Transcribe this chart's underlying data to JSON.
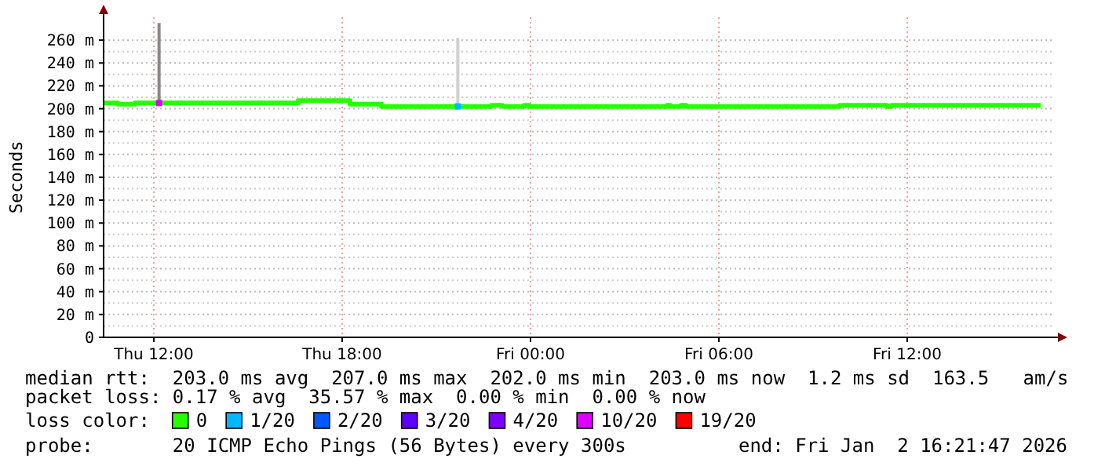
{
  "chart_data": {
    "type": "step",
    "ylabel": "Seconds",
    "legend_title": "loss color:",
    "legend": "bottom",
    "grid": true,
    "xlim": [
      "2026-01-01T10:24",
      "2026-01-02T16:36"
    ],
    "ylim": [
      0,
      280
    ],
    "xticks": [
      {
        "value": "2026-01-01T12:00",
        "label": "Thu 12:00"
      },
      {
        "value": "2026-01-01T18:00",
        "label": "Thu 18:00"
      },
      {
        "value": "2026-01-02T00:00",
        "label": "Fri 00:00"
      },
      {
        "value": "2026-01-02T06:00",
        "label": "Fri 06:00"
      },
      {
        "value": "2026-01-02T12:00",
        "label": "Fri 12:00"
      }
    ],
    "yticks": [
      0,
      {
        "value": 20,
        "label": "20 m"
      },
      {
        "value": 40,
        "label": "40 m"
      },
      {
        "value": 60,
        "label": "60 m"
      },
      {
        "value": 80,
        "label": "80 m"
      },
      {
        "value": 100,
        "label": "100 m"
      },
      {
        "value": 120,
        "label": "120 m"
      },
      {
        "value": 140,
        "label": "140 m"
      },
      {
        "value": 160,
        "label": "160 m"
      },
      {
        "value": 180,
        "label": "180 m"
      },
      {
        "value": 200,
        "label": "200 m"
      },
      {
        "value": 220,
        "label": "220 m"
      },
      {
        "value": 240,
        "label": "240 m"
      },
      {
        "value": 260,
        "label": "260 m"
      }
    ],
    "series": [
      {
        "type": "line",
        "color": "#888888",
        "x": [
          "2026-01-01T12:10",
          "2026-01-01T12:10"
        ],
        "values": [
          205,
          275
        ]
      },
      {
        "type": "line",
        "color": "#d0d0d0",
        "x": [
          "2026-01-01T21:41",
          "2026-01-01T21:41"
        ],
        "values": [
          202,
          262
        ]
      },
      {
        "name": "0",
        "color": "#26ff00",
        "x": [
          "2026-01-01T10:24",
          "2026-01-01T10:51",
          "2026-01-01T11:24",
          "2026-01-01T16:36",
          "2026-01-01T18:15",
          "2026-01-01T19:15",
          "2026-01-01T22:45",
          "2026-01-01T23:06",
          "2026-01-01T23:48",
          "2026-01-01T23:57",
          "2026-01-02T04:21",
          "2026-01-02T04:27",
          "2026-01-02T04:48",
          "2026-01-02T04:57",
          "2026-01-02T09:51",
          "2026-01-02T11:21",
          "2026-01-02T11:30",
          "2026-01-02T16:15"
        ],
        "values": [
          205,
          204,
          205,
          207,
          204,
          202,
          203,
          202,
          203,
          202,
          203,
          202,
          203,
          202,
          203,
          202,
          203,
          203
        ]
      },
      {
        "name": "1/20",
        "type": "scatter",
        "marker": "square",
        "color": "#00b8ff",
        "x": [
          "2026-01-01T21:41"
        ],
        "values": [
          202
        ]
      },
      {
        "name": "2/20",
        "color": "#0059ff"
      },
      {
        "name": "3/20",
        "color": "#5e00ff"
      },
      {
        "name": "4/20",
        "color": "#7e00ff"
      },
      {
        "name": "10/20",
        "type": "scatter",
        "marker": "square",
        "color": "#dd00ff",
        "x": [
          "2026-01-01T12:10"
        ],
        "values": [
          205
        ]
      },
      {
        "name": "19/20",
        "color": "#ff0000"
      }
    ],
    "annotations": [
      "median rtt:  203.0 ms avg  207.0 ms max  202.0 ms min  203.0 ms now  1.2 ms sd  163.5   am/s",
      "packet loss: 0.17 % avg  35.57 % max  0.00 % min  0.00 % now",
      "probe:       20 ICMP Echo Pings (56 Bytes) every 300s",
      "end: Fri Jan  2 16:21:47 2026"
    ]
  }
}
